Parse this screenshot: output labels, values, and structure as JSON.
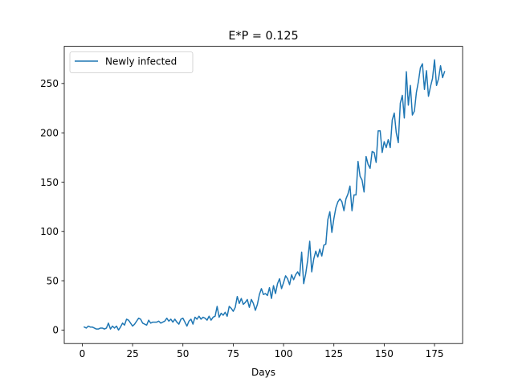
{
  "chart_data": {
    "type": "line",
    "title": "E*P = 0.125",
    "xlabel": "Days",
    "ylabel": "",
    "xlim": [
      -8.95,
      188.95
    ],
    "ylim": [
      -13.7,
      287.7
    ],
    "xticks": [
      0,
      25,
      50,
      75,
      100,
      125,
      150,
      175
    ],
    "yticks": [
      0,
      50,
      100,
      150,
      200,
      250
    ],
    "grid": false,
    "legend": {
      "position": "top-left"
    },
    "series": [
      {
        "name": "Newly infected",
        "color": "#1f77b4",
        "x": [
          1,
          2,
          3,
          4,
          5,
          6,
          7,
          8,
          9,
          10,
          11,
          12,
          13,
          14,
          15,
          16,
          17,
          18,
          19,
          20,
          21,
          22,
          23,
          24,
          25,
          26,
          27,
          28,
          29,
          30,
          31,
          32,
          33,
          34,
          35,
          36,
          37,
          38,
          39,
          40,
          41,
          42,
          43,
          44,
          45,
          46,
          47,
          48,
          49,
          50,
          51,
          52,
          53,
          54,
          55,
          56,
          57,
          58,
          59,
          60,
          61,
          62,
          63,
          64,
          65,
          66,
          67,
          68,
          69,
          70,
          71,
          72,
          73,
          74,
          75,
          76,
          77,
          78,
          79,
          80,
          81,
          82,
          83,
          84,
          85,
          86,
          87,
          88,
          89,
          90,
          91,
          92,
          93,
          94,
          95,
          96,
          97,
          98,
          99,
          100,
          101,
          102,
          103,
          104,
          105,
          106,
          107,
          108,
          109,
          110,
          111,
          112,
          113,
          114,
          115,
          116,
          117,
          118,
          119,
          120,
          121,
          122,
          123,
          124,
          125,
          126,
          127,
          128,
          129,
          130,
          131,
          132,
          133,
          134,
          135,
          136,
          137,
          138,
          139,
          140,
          141,
          142,
          143,
          144,
          145,
          146,
          147,
          148,
          149,
          150,
          151,
          152,
          153,
          154,
          155,
          156,
          157,
          158,
          159,
          160,
          161,
          162,
          163,
          164,
          165,
          166,
          167,
          168,
          169,
          170,
          171,
          172,
          173,
          174,
          175,
          176,
          177,
          178,
          179,
          180
        ],
        "values": [
          3,
          2,
          4,
          3,
          3,
          2,
          1,
          1,
          2,
          2,
          1,
          2,
          7,
          1,
          4,
          2,
          4,
          0,
          3,
          7,
          5,
          11,
          10,
          7,
          4,
          6,
          9,
          12,
          11,
          7,
          6,
          5,
          10,
          7,
          8,
          8,
          8,
          9,
          7,
          8,
          9,
          12,
          9,
          11,
          8,
          11,
          8,
          6,
          11,
          12,
          8,
          4,
          9,
          11,
          6,
          13,
          11,
          14,
          11,
          13,
          12,
          10,
          14,
          10,
          13,
          14,
          24,
          13,
          17,
          15,
          18,
          14,
          24,
          22,
          19,
          23,
          34,
          27,
          32,
          26,
          28,
          31,
          23,
          31,
          27,
          20,
          26,
          36,
          42,
          36,
          37,
          35,
          43,
          32,
          45,
          37,
          47,
          52,
          42,
          48,
          55,
          52,
          46,
          56,
          51,
          56,
          59,
          55,
          79,
          47,
          57,
          71,
          90,
          59,
          72,
          80,
          74,
          82,
          75,
          86,
          87,
          112,
          120,
          99,
          113,
          124,
          130,
          133,
          130,
          121,
          133,
          138,
          146,
          121,
          137,
          137,
          171,
          156,
          152,
          140,
          176,
          168,
          164,
          181,
          180,
          170,
          202,
          202,
          180,
          191,
          185,
          193,
          185,
          213,
          220,
          200,
          190,
          230,
          238,
          215,
          262,
          228,
          248,
          218,
          222,
          241,
          252,
          266,
          270,
          244,
          263,
          237,
          247,
          255,
          274,
          248,
          255,
          268,
          256,
          262
        ]
      }
    ]
  }
}
